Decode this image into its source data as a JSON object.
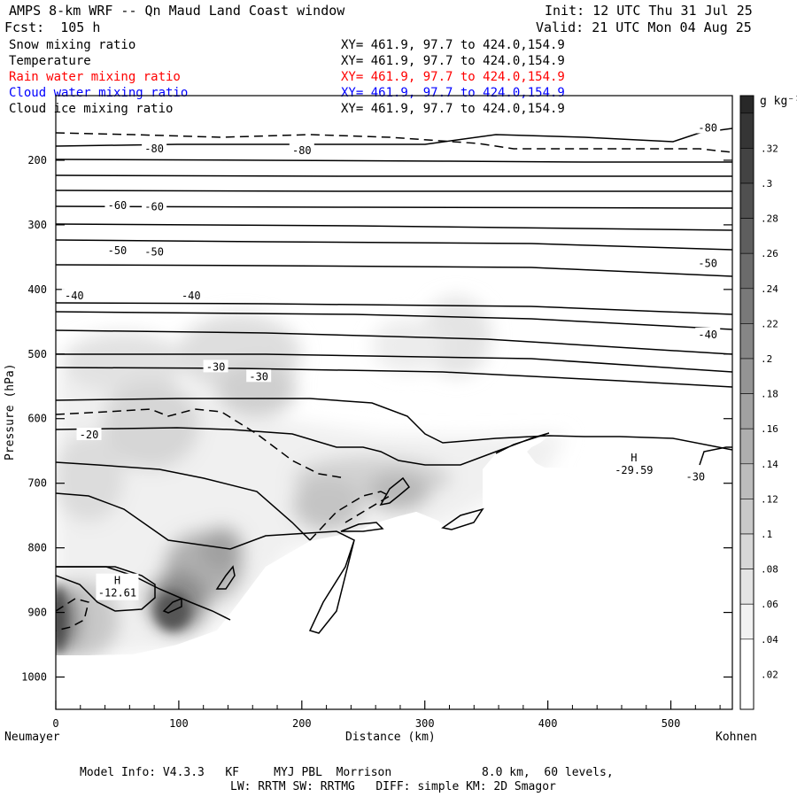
{
  "header": {
    "title": "AMPS 8-km WRF -- Qn Maud Land Coast window",
    "init": "Init: 12 UTC Thu 31 Jul 25",
    "fcst": "Fcst:  105 h",
    "valid": "Valid: 21 UTC Mon 04 Aug 25"
  },
  "fields": [
    {
      "name": "Snow mixing ratio",
      "xy": "XY= 461.9, 97.7 to 424.0,154.9",
      "color": "#000000"
    },
    {
      "name": "Temperature",
      "xy": "XY= 461.9, 97.7 to 424.0,154.9",
      "color": "#000000"
    },
    {
      "name": "Rain water mixing ratio",
      "xy": "XY= 461.9, 97.7 to 424.0,154.9",
      "color": "#ff0000"
    },
    {
      "name": "Cloud water mixing ratio",
      "xy": "XY= 461.9, 97.7 to 424.0,154.9",
      "color": "#0000ff"
    },
    {
      "name": "Cloud ice mixing ratio",
      "xy": "XY= 461.9, 97.7 to 424.0,154.9",
      "color": "#000000"
    }
  ],
  "footer": {
    "line1": "Model Info: V4.3.3   KF     MYJ PBL  Morrison             8.0 km,  60 levels,",
    "line2": "LW: RRTM SW: RRTMG   DIFF: simple KM: 2D Smagor"
  },
  "chart_data": {
    "type": "contour-cross-section",
    "xlabel": "Distance (km)",
    "ylabel": "Pressure (hPa)",
    "x_start_label": "Neumayer",
    "x_end_label": "Kohnen",
    "xlim": [
      0,
      550
    ],
    "ylim": [
      1050,
      100
    ],
    "x_ticks": [
      0,
      100,
      200,
      300,
      400,
      500
    ],
    "y_ticks": [
      200,
      300,
      400,
      500,
      600,
      700,
      800,
      900,
      1000
    ],
    "colorbar": {
      "unit": "g kg⁻¹",
      "ticks": [
        ".32",
        ".3",
        ".28",
        ".26",
        ".24",
        ".22",
        ".2",
        ".18",
        ".16",
        ".14",
        ".12",
        ".1",
        ".08",
        ".06",
        ".04",
        ".02"
      ],
      "values": [
        0.32,
        0.3,
        0.28,
        0.26,
        0.24,
        0.22,
        0.2,
        0.18,
        0.16,
        0.14,
        0.12,
        0.1,
        0.08,
        0.06,
        0.04,
        0.02
      ]
    },
    "terrain_surface": [
      [
        0,
        970
      ],
      [
        100,
        955
      ],
      [
        200,
        830
      ],
      [
        220,
        790
      ],
      [
        300,
        760
      ],
      [
        400,
        700
      ],
      [
        440,
        670
      ],
      [
        550,
        665
      ]
    ],
    "temperature_contours": [
      {
        "label": "-80",
        "x": 80,
        "p": 182
      },
      {
        "label": "-80",
        "x": 200,
        "p": 185
      },
      {
        "label": "-80",
        "x": 530,
        "p": 150
      },
      {
        "label": "-60",
        "x": 50,
        "p": 270
      },
      {
        "label": "-60",
        "x": 80,
        "p": 272
      },
      {
        "label": "-50",
        "x": 50,
        "p": 340
      },
      {
        "label": "-50",
        "x": 80,
        "p": 342
      },
      {
        "label": "-50",
        "x": 530,
        "p": 360
      },
      {
        "label": "-40",
        "x": 15,
        "p": 410
      },
      {
        "label": "-40",
        "x": 110,
        "p": 410
      },
      {
        "label": "-40",
        "x": 530,
        "p": 470
      },
      {
        "label": "-30",
        "x": 130,
        "p": 520
      },
      {
        "label": "-30",
        "x": 165,
        "p": 535
      },
      {
        "label": "-30",
        "x": 520,
        "p": 690
      },
      {
        "label": "-20",
        "x": 27,
        "p": 625
      }
    ],
    "extrema": [
      {
        "type": "H",
        "value": "-12.61",
        "x": 50,
        "p": 870
      },
      {
        "type": "H",
        "value": "-29.59",
        "x": 470,
        "p": 680
      }
    ]
  }
}
